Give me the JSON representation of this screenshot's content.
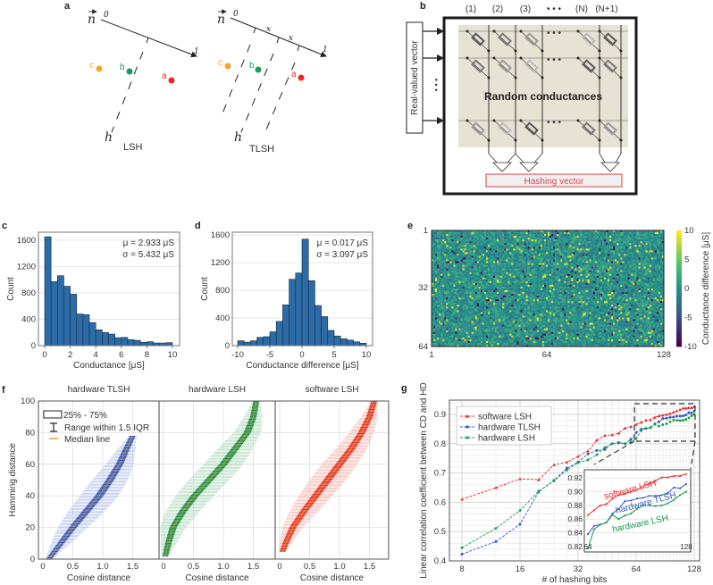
{
  "panel_a": {
    "label": "a",
    "vector": "n",
    "start": "0",
    "end": "1",
    "interval": "x",
    "hyperplane": "h",
    "point_a": "a",
    "point_b": "b",
    "point_c": "c",
    "lsh_title": "LSH",
    "tlsh_title": "TLSH",
    "colors": {
      "a": "#e32b26",
      "b": "#12a05a",
      "c": "#f5a623"
    }
  },
  "panel_b": {
    "label": "b",
    "columns": [
      "(1)",
      "(2)",
      "(3)",
      "(N)",
      "(N+1)"
    ],
    "ellipsis": "• • •",
    "input_label": "Real-valued vector",
    "array_label": "Random conductances",
    "output_label": "Hashing vector"
  },
  "panel_labels": {
    "c": "c",
    "d": "d",
    "e": "e",
    "f": "f",
    "g": "g"
  },
  "chart_data": [
    {
      "id": "c",
      "type": "bar",
      "xlabel": "Conductance [μS]",
      "ylabel": "Count",
      "bin_start": 0,
      "bin_width": 0.5,
      "values": [
        1650,
        970,
        1060,
        900,
        780,
        480,
        470,
        350,
        240,
        200,
        175,
        120,
        125,
        90,
        80,
        50,
        60,
        40,
        40,
        45
      ],
      "xticks": [
        0,
        2,
        4,
        6,
        8,
        10
      ],
      "yticks": [
        0,
        400,
        800,
        1200,
        1600
      ],
      "xlim": [
        -0.5,
        10.5
      ],
      "ylim": [
        0,
        1720
      ],
      "annotations": [
        "μ = 2.933 μS",
        "σ = 5.432 μS"
      ],
      "color": "#2b6ca8"
    },
    {
      "id": "d",
      "type": "bar",
      "xlabel": "Conductance difference [μS]",
      "ylabel": "Count",
      "bin_start": -10,
      "bin_width": 1,
      "values": [
        70,
        50,
        70,
        120,
        130,
        200,
        350,
        590,
        960,
        1050,
        1540,
        940,
        580,
        420,
        220,
        140,
        100,
        80,
        55,
        35
      ],
      "xticks": [
        -10,
        -5,
        0,
        5,
        10
      ],
      "yticks": [
        0,
        400,
        800,
        1200,
        1600
      ],
      "xlim": [
        -10.8,
        11
      ],
      "ylim": [
        0,
        1640
      ],
      "annotations": [
        "μ = 0.017 μS",
        "σ = 3.097 μS"
      ],
      "color": "#2b6ca8"
    },
    {
      "id": "e",
      "type": "heatmap",
      "rows": 64,
      "cols": 128,
      "xticks": [
        1,
        64,
        128
      ],
      "yticks": [
        1,
        32,
        64
      ],
      "value_range": [
        -10,
        10
      ],
      "colorbar_ticks": [
        10,
        5,
        0,
        -5,
        -10
      ],
      "colorbar_label": "Conductance difference [μS]"
    },
    {
      "id": "f",
      "type": "scatter",
      "ylabel": "Hamming distance",
      "xlabel": "Cosine distance",
      "xticks": [
        0,
        0.5,
        1.0,
        1.5
      ],
      "yticks": [
        0,
        20,
        40,
        60,
        80,
        100
      ],
      "xlim": [
        -0.08,
        1.9
      ],
      "ylim": [
        0,
        100
      ],
      "legend": [
        "25% - 75%",
        "Range within 1.5 IQR",
        "Median line"
      ],
      "median_color": "#f39a2e",
      "subplots": [
        {
          "title": "hardware TLSH",
          "color": "#2f52b0",
          "light": "#b9c6ea",
          "median": [
            [
              0.1,
              0
            ],
            [
              0.3,
              10
            ],
            [
              0.5,
              20
            ],
            [
              0.72,
              30
            ],
            [
              0.94,
              40
            ],
            [
              1.12,
              50
            ],
            [
              1.28,
              60
            ],
            [
              1.4,
              70
            ],
            [
              1.5,
              78
            ]
          ],
          "iqr_halfwidth": 0.07,
          "whisker_halfwidth": 0.32
        },
        {
          "title": "hardware LSH",
          "color": "#168a3e",
          "light": "#b5dcc0",
          "median": [
            [
              0.03,
              2
            ],
            [
              0.08,
              10
            ],
            [
              0.16,
              20
            ],
            [
              0.32,
              30
            ],
            [
              0.52,
              40
            ],
            [
              0.76,
              50
            ],
            [
              1.0,
              60
            ],
            [
              1.2,
              70
            ],
            [
              1.4,
              80
            ],
            [
              1.5,
              90
            ],
            [
              1.55,
              100
            ]
          ],
          "iqr_halfwidth": 0.07,
          "whisker_halfwidth": 0.34
        },
        {
          "title": "software LSH",
          "color": "#e2311d",
          "light": "#f6b9b0",
          "median": [
            [
              0.05,
              5
            ],
            [
              0.1,
              10
            ],
            [
              0.22,
              20
            ],
            [
              0.4,
              30
            ],
            [
              0.6,
              40
            ],
            [
              0.8,
              50
            ],
            [
              1.0,
              60
            ],
            [
              1.2,
              70
            ],
            [
              1.37,
              80
            ],
            [
              1.5,
              90
            ],
            [
              1.58,
              100
            ]
          ],
          "iqr_halfwidth": 0.07,
          "whisker_halfwidth": 0.3
        }
      ]
    },
    {
      "id": "g",
      "type": "line",
      "xlabel": "# of hashing bits",
      "ylabel": "Linear correlation coefficient between CD and HD",
      "xscale": "log2",
      "xticks": [
        8,
        16,
        32,
        64,
        128
      ],
      "yticks": [
        0.4,
        0.5,
        0.6,
        0.7,
        0.8,
        0.9
      ],
      "ylim": [
        0.4,
        0.95
      ],
      "legend_position": "top-left",
      "x": [
        8,
        12,
        16,
        20,
        24,
        28,
        32,
        36,
        40,
        44,
        48,
        52,
        56,
        60,
        64,
        68,
        72,
        76,
        80,
        84,
        88,
        92,
        96,
        100,
        104,
        108,
        112,
        116,
        120,
        124,
        128
      ],
      "series": [
        {
          "name": "software LSH",
          "color": "#e8262b",
          "marker": "triangle",
          "values": [
            0.61,
            0.65,
            0.68,
            0.677,
            0.728,
            0.737,
            0.757,
            0.775,
            0.812,
            0.828,
            0.83,
            0.836,
            0.853,
            0.858,
            0.866,
            0.873,
            0.88,
            0.882,
            0.89,
            0.895,
            0.897,
            0.9,
            0.903,
            0.908,
            0.912,
            0.916,
            0.921,
            0.921,
            0.923,
            0.923,
            0.926
          ]
        },
        {
          "name": "hardware TLSH",
          "color": "#2d55c8",
          "marker": "circle",
          "values": [
            0.423,
            0.466,
            0.525,
            0.636,
            0.675,
            0.717,
            0.737,
            0.765,
            0.777,
            0.78,
            0.8,
            0.804,
            0.8,
            0.815,
            0.838,
            0.85,
            0.852,
            0.855,
            0.868,
            0.875,
            0.886,
            0.887,
            0.89,
            0.891,
            0.894,
            0.894,
            0.895,
            0.898,
            0.906,
            0.905,
            0.911
          ]
        },
        {
          "name": "hardware LSH",
          "color": "#149a4a",
          "marker": "square",
          "values": [
            0.445,
            0.511,
            0.572,
            0.638,
            0.673,
            0.71,
            0.735,
            0.745,
            0.762,
            0.787,
            0.8,
            0.802,
            0.8,
            0.806,
            0.817,
            0.845,
            0.852,
            0.855,
            0.866,
            0.86,
            0.865,
            0.868,
            0.875,
            0.88,
            0.88,
            0.879,
            0.88,
            0.883,
            0.888,
            0.895,
            0.9
          ]
        }
      ],
      "inset": {
        "xticks": [
          64,
          128
        ],
        "yticks": [
          0.82,
          0.84,
          0.86,
          0.88,
          0.9,
          0.92
        ],
        "ylim": [
          0.812,
          0.932
        ]
      }
    }
  ]
}
